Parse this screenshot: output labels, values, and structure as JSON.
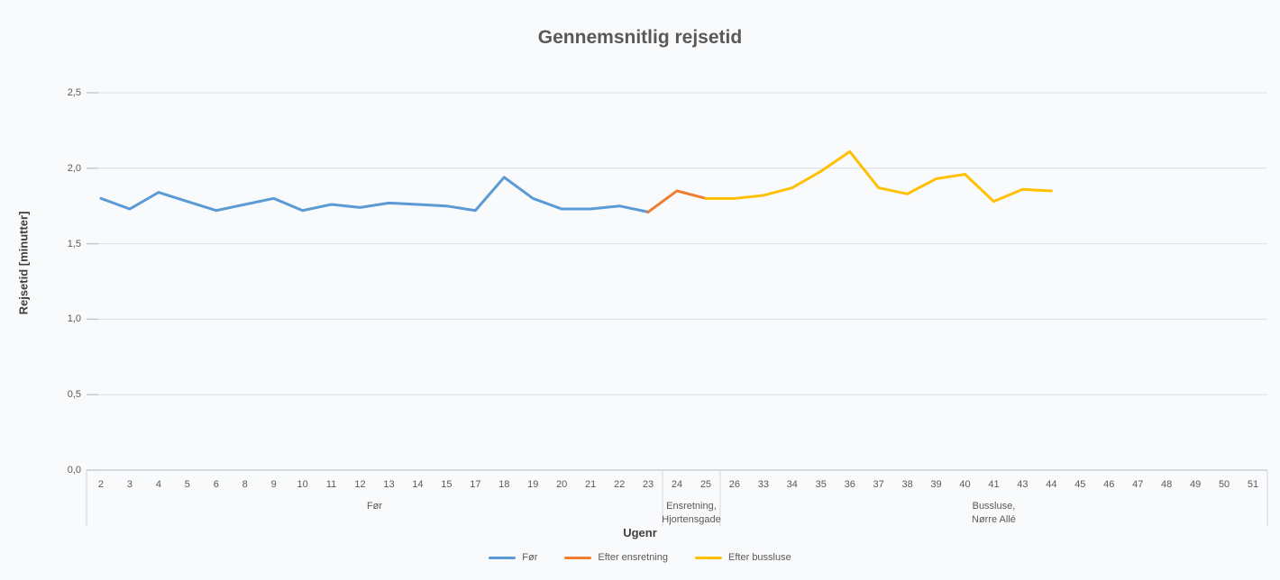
{
  "chart_data": {
    "type": "line",
    "title": "Gennemsnitlig rejsetid",
    "xlabel": "Ugenr",
    "ylabel": "Rejsetid [minutter]",
    "ylim": [
      0,
      2.5
    ],
    "ytick_step": 0.5,
    "ytick_labels": [
      "0,0",
      "0,5",
      "1,0",
      "1,5",
      "2,0",
      "2,5"
    ],
    "grid": true,
    "legend_position": "bottom",
    "categories": [
      "2",
      "3",
      "4",
      "5",
      "6",
      "8",
      "9",
      "10",
      "11",
      "12",
      "13",
      "14",
      "15",
      "17",
      "18",
      "19",
      "20",
      "21",
      "22",
      "23",
      "24",
      "25",
      "26",
      "33",
      "34",
      "35",
      "36",
      "37",
      "38",
      "39",
      "40",
      "41",
      "43",
      "44",
      "45",
      "46",
      "47",
      "48",
      "49",
      "50",
      "51"
    ],
    "series": [
      {
        "name": "Før",
        "color": "#5B9BD5",
        "start_index": 0,
        "values": [
          1.8,
          1.73,
          1.84,
          1.78,
          1.72,
          1.76,
          1.8,
          1.72,
          1.76,
          1.74,
          1.77,
          1.76,
          1.75,
          1.72,
          1.94,
          1.8,
          1.73,
          1.73,
          1.75,
          1.71
        ]
      },
      {
        "name": "Efter ensretning",
        "color": "#ED7D31",
        "start_index": 19,
        "values": [
          1.71,
          1.85,
          1.8
        ]
      },
      {
        "name": "Efter bussluse",
        "color": "#FFC000",
        "start_index": 21,
        "values": [
          1.8,
          1.8,
          1.82,
          1.87,
          1.98,
          2.11,
          1.87,
          1.83,
          1.93,
          1.96,
          1.78,
          1.86,
          1.85
        ]
      }
    ],
    "axis_groups": [
      {
        "lines": [
          "Før"
        ],
        "from_index": 0,
        "to_index": 19
      },
      {
        "lines": [
          "Ensretning,",
          "Hjortensgade"
        ],
        "from_index": 20,
        "to_index": 21
      },
      {
        "lines": [
          "Bussluse,",
          "Nørre Allé"
        ],
        "from_index": 22,
        "to_index": 40
      }
    ]
  },
  "theme": {
    "background": "#f9fafc",
    "gridline": "#dcdee1",
    "gridline_tick": "#c4c6c9",
    "axis_line": "#b9bbbe",
    "separator": "#d5d7da",
    "label_color": "#595959",
    "title_color": "#595959",
    "axis_title_color": "#404040"
  }
}
